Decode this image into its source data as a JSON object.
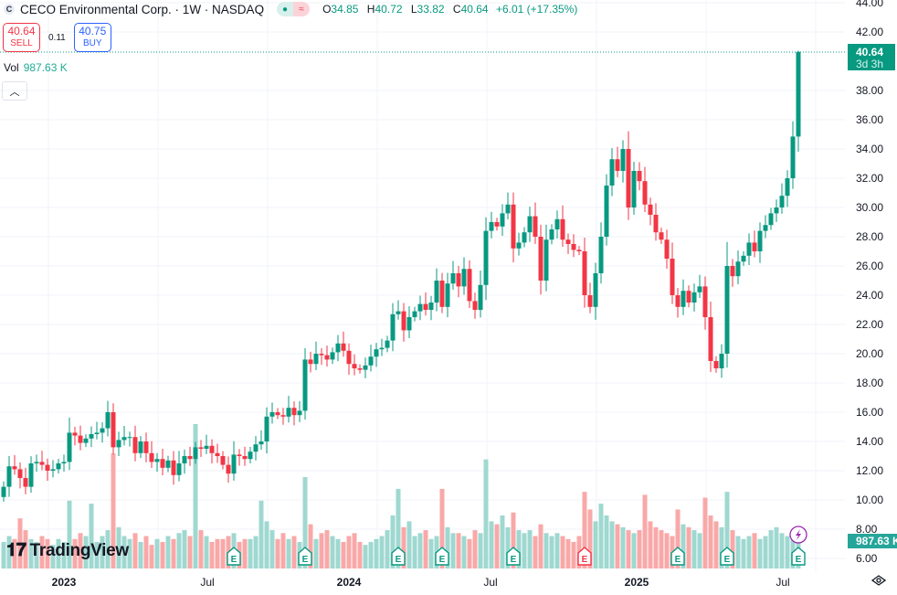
{
  "header": {
    "symbol_icon": "C",
    "title": "CECO Environmental Corp. · 1W · NASDAQ",
    "open_label": "O",
    "open": "34.85",
    "high_label": "H",
    "high": "40.72",
    "low_label": "L",
    "low": "33.82",
    "close_label": "C",
    "close": "40.64",
    "change": "+6.01 (+17.35%)",
    "market_status_icon": "green-dot-icon",
    "data_icon": "wave-icon"
  },
  "trade": {
    "sell_price": "40.64",
    "sell_label": "SELL",
    "spread": "0.11",
    "buy_price": "40.75",
    "buy_label": "BUY"
  },
  "volume_legend": {
    "label": "Vol",
    "value": "987.63 K"
  },
  "price_axis": {
    "ticks": [
      "44.00",
      "42.00",
      "38.00",
      "36.00",
      "34.00",
      "32.00",
      "30.00",
      "28.00",
      "26.00",
      "24.00",
      "22.00",
      "20.00",
      "18.00",
      "16.00",
      "14.00",
      "12.00",
      "10.00",
      "8.00",
      "6.00"
    ],
    "current_price": "40.64",
    "countdown": "3d 3h",
    "volume_label": "987.63 K"
  },
  "time_axis": {
    "ticks": [
      "2023",
      "Jul",
      "2024",
      "Jul",
      "2025",
      "Jul"
    ]
  },
  "brand": "TradingView",
  "colors": {
    "up": "#089981",
    "down": "#f23645",
    "vol_up": "#9fd8d0",
    "vol_down": "#f9a8a8",
    "earnings": "#089981",
    "grid": "#f0f3fa"
  },
  "chart_data": {
    "type": "candlestick",
    "title": "CECO Environmental Corp. · 1W · NASDAQ",
    "ylim": [
      6,
      44
    ],
    "first_open": 10.2,
    "close": [
      10.9,
      12.3,
      12.1,
      11.5,
      10.9,
      12.5,
      12.6,
      12.4,
      12.0,
      12.1,
      12.5,
      12.6,
      14.6,
      14.4,
      13.9,
      14.2,
      14.5,
      14.6,
      14.9,
      16.0,
      13.6,
      14.1,
      14.3,
      14.3,
      13.2,
      14.0,
      13.2,
      12.6,
      12.8,
      12.2,
      12.7,
      11.7,
      12.5,
      13.0,
      12.8,
      13.6,
      13.5,
      13.7,
      13.2,
      13.0,
      12.4,
      11.8,
      13.1,
      13.0,
      12.8,
      13.3,
      13.8,
      14.0,
      15.7,
      16.0,
      15.8,
      15.7,
      16.3,
      15.8,
      16.1,
      19.6,
      19.3,
      20.0,
      19.9,
      19.6,
      20.1,
      20.7,
      20.2,
      19.3,
      19.0,
      18.9,
      19.2,
      19.8,
      20.3,
      20.4,
      20.9,
      22.7,
      22.9,
      21.6,
      22.5,
      22.9,
      23.4,
      23.0,
      23.5,
      25.0,
      23.2,
      24.8,
      25.5,
      24.6,
      25.8,
      23.6,
      23.0,
      24.7,
      28.4,
      29.0,
      28.7,
      29.6,
      30.2,
      27.2,
      27.6,
      28.3,
      29.4,
      28.0,
      25.0,
      27.8,
      28.5,
      29.2,
      27.8,
      27.5,
      27.1,
      27.0,
      24.0,
      23.2,
      25.5,
      28.0,
      31.5,
      33.3,
      32.5,
      34.0,
      30.0,
      32.5,
      31.8,
      30.2,
      29.5,
      28.3,
      27.8,
      26.5,
      24.0,
      23.2,
      24.3,
      23.5,
      24.2,
      24.6,
      22.5,
      19.5,
      19.0,
      20.0,
      26.0,
      25.3,
      26.3,
      26.7,
      27.6,
      27.0,
      28.4,
      28.8,
      29.6,
      30.0,
      30.8,
      32.0,
      34.85,
      40.64
    ],
    "last_candle": {
      "open": 34.85,
      "high": 40.72,
      "low": 33.82,
      "close": 40.64
    },
    "volume_k": [
      900,
      1100,
      1000,
      1700,
      1300,
      1000,
      900,
      1100,
      1000,
      800,
      1000,
      900,
      2300,
      1000,
      1200,
      1100,
      2200,
      900,
      1100,
      1300,
      3900,
      1400,
      1100,
      1000,
      1200,
      900,
      1100,
      800,
      1000,
      900,
      1100,
      1000,
      1200,
      1300,
      1100,
      4900,
      1300,
      1100,
      900,
      1000,
      1000,
      1100,
      1200,
      900,
      1000,
      1000,
      1100,
      2300,
      1600,
      1300,
      1000,
      1200,
      1000,
      1100,
      900,
      3100,
      1500,
      1000,
      1200,
      1300,
      1100,
      1000,
      900,
      1100,
      1200,
      900,
      800,
      900,
      1000,
      1100,
      1300,
      1800,
      2700,
      1400,
      1600,
      1100,
      1200,
      1300,
      1000,
      1100,
      2700,
      1400,
      1200,
      1200,
      1100,
      1000,
      1300,
      1200,
      3700,
      1600,
      1500,
      1800,
      1400,
      1900,
      1300,
      1200,
      1300,
      1100,
      1500,
      1200,
      1100,
      1200,
      1100,
      1000,
      900,
      1100,
      2600,
      2000,
      1600,
      2200,
      1800,
      1600,
      1500,
      1400,
      1300,
      1200,
      1300,
      2500,
      1600,
      1400,
      1300,
      1200,
      1100,
      2000,
      1500,
      1400,
      1300,
      1200,
      2400,
      1800,
      1600,
      1400,
      2600,
      1300,
      1100,
      1000,
      1100,
      1200,
      1000,
      1100,
      1300,
      1400,
      1200,
      1100,
      1000,
      988
    ],
    "earnings_weeks": [
      42,
      55,
      72,
      80,
      93,
      106,
      123,
      132,
      145
    ]
  }
}
